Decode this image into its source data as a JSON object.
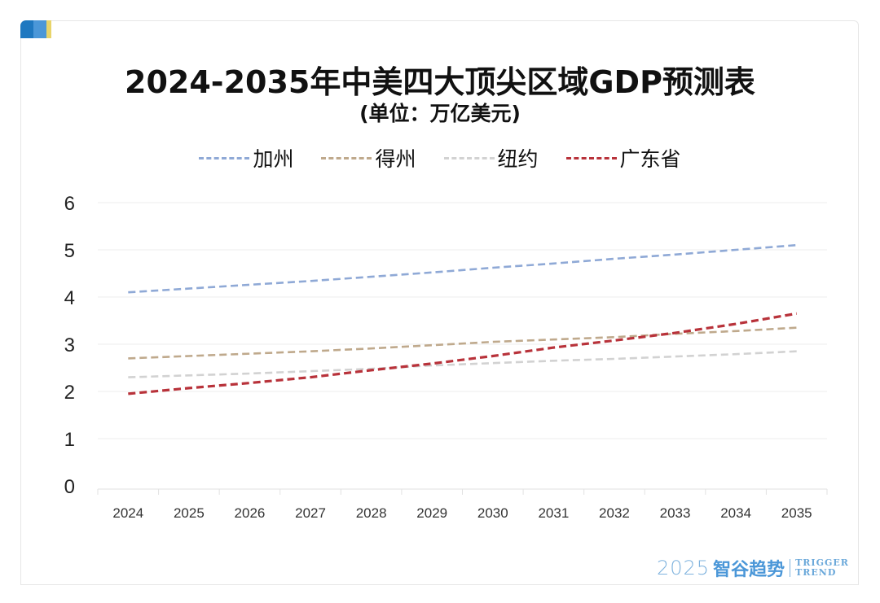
{
  "title": "2024-2035年中美四大顶尖区域GDP预测表",
  "subtitle": "(单位：万亿美元)",
  "watermark": {
    "year": "2025",
    "brand_cn": "智谷趋势",
    "brand_en_line1": "TRIGGER",
    "brand_en_line2": "TREND"
  },
  "chart_data": {
    "type": "line",
    "title": "2024-2035年中美四大顶尖区域GDP预测表",
    "subtitle": "(单位：万亿美元)",
    "xlabel": "",
    "ylabel": "",
    "categories": [
      "2024",
      "2025",
      "2026",
      "2027",
      "2028",
      "2029",
      "2030",
      "2031",
      "2032",
      "2033",
      "2034",
      "2035"
    ],
    "ylim": [
      0,
      6
    ],
    "yticks": [
      "0",
      "1",
      "2",
      "3",
      "4",
      "5",
      "6"
    ],
    "grid": true,
    "legend_position": "top-center",
    "line_style": "dashed",
    "series": [
      {
        "name": "加州",
        "color": "#8FA9D6",
        "values": [
          4.1,
          4.18,
          4.26,
          4.34,
          4.43,
          4.52,
          4.62,
          4.71,
          4.81,
          4.9,
          5.0,
          5.1
        ]
      },
      {
        "name": "得州",
        "color": "#BFA98C",
        "values": [
          2.7,
          2.75,
          2.8,
          2.85,
          2.91,
          2.98,
          3.05,
          3.1,
          3.15,
          3.22,
          3.28,
          3.35
        ]
      },
      {
        "name": "纽约",
        "color": "#D2D2D2",
        "values": [
          2.3,
          2.34,
          2.38,
          2.43,
          2.48,
          2.55,
          2.6,
          2.65,
          2.69,
          2.74,
          2.79,
          2.85
        ]
      },
      {
        "name": "广东省",
        "color": "#B8323A",
        "values": [
          1.95,
          2.07,
          2.18,
          2.3,
          2.45,
          2.59,
          2.75,
          2.93,
          3.08,
          3.24,
          3.43,
          3.65
        ]
      }
    ]
  }
}
